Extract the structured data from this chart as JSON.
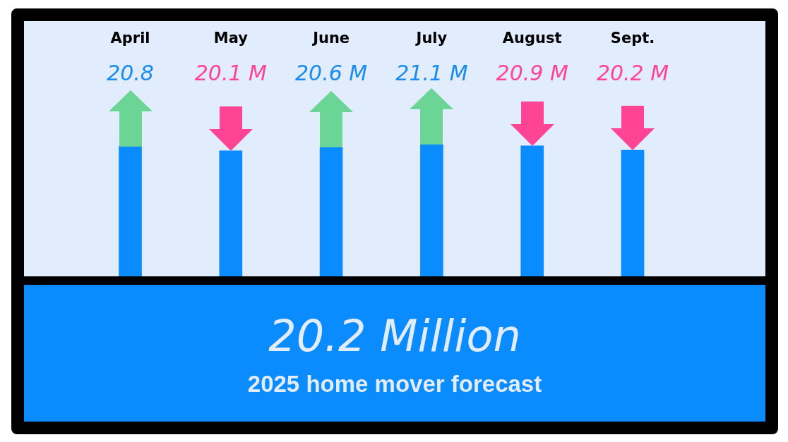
{
  "chart_data": {
    "type": "bar",
    "title": "20.2 Million",
    "subtitle": "2025 home mover forecast",
    "categories": [
      "April",
      "May",
      "June",
      "July",
      "August",
      "Sept."
    ],
    "values": [
      20.8,
      20.1,
      20.6,
      21.1,
      20.9,
      20.2
    ],
    "value_labels": [
      "20.8",
      "20.1 M",
      "20.6 M",
      "21.1 M",
      "20.9 M",
      "20.2 M"
    ],
    "color": "#0a8cff",
    "tick_labels": "x"
  }
}
